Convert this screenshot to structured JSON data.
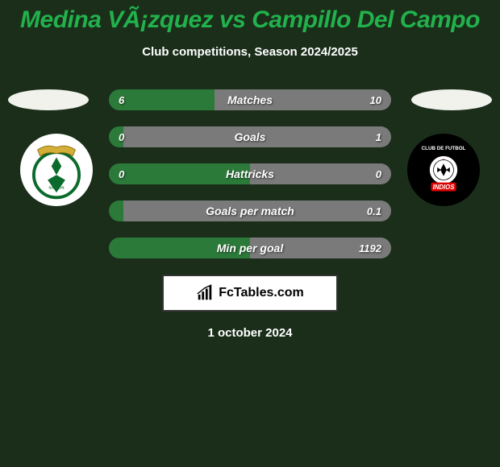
{
  "background_color": "#1a2e1a",
  "title": "Medina VÃ¡zquez vs Campillo Del Campo",
  "title_color": "#22b14c",
  "subtitle": "Club competitions, Season 2024/2025",
  "subtitle_color": "#ffffff",
  "date": "1 october 2024",
  "date_color": "#ffffff",
  "brand": "FcTables.com",
  "bars": {
    "left_color": "#2c7a3a",
    "right_color": "#7a7a7a",
    "label_color": "#ffffff",
    "rows": [
      {
        "label": "Matches",
        "left_val": "6",
        "right_val": "10",
        "left_pct": 37.5
      },
      {
        "label": "Goals",
        "left_val": "0",
        "right_val": "1",
        "left_pct": 5
      },
      {
        "label": "Hattricks",
        "left_val": "0",
        "right_val": "0",
        "left_pct": 50
      },
      {
        "label": "Goals per match",
        "left_val": "",
        "right_val": "0.1",
        "left_pct": 5
      },
      {
        "label": "Min per goal",
        "left_val": "",
        "right_val": "1192",
        "left_pct": 50
      }
    ]
  },
  "left_club": {
    "name": "Santos Laguna",
    "badge_bg": "#ffffff"
  },
  "right_club": {
    "name": "Indios",
    "badge_bg": "#000000"
  }
}
